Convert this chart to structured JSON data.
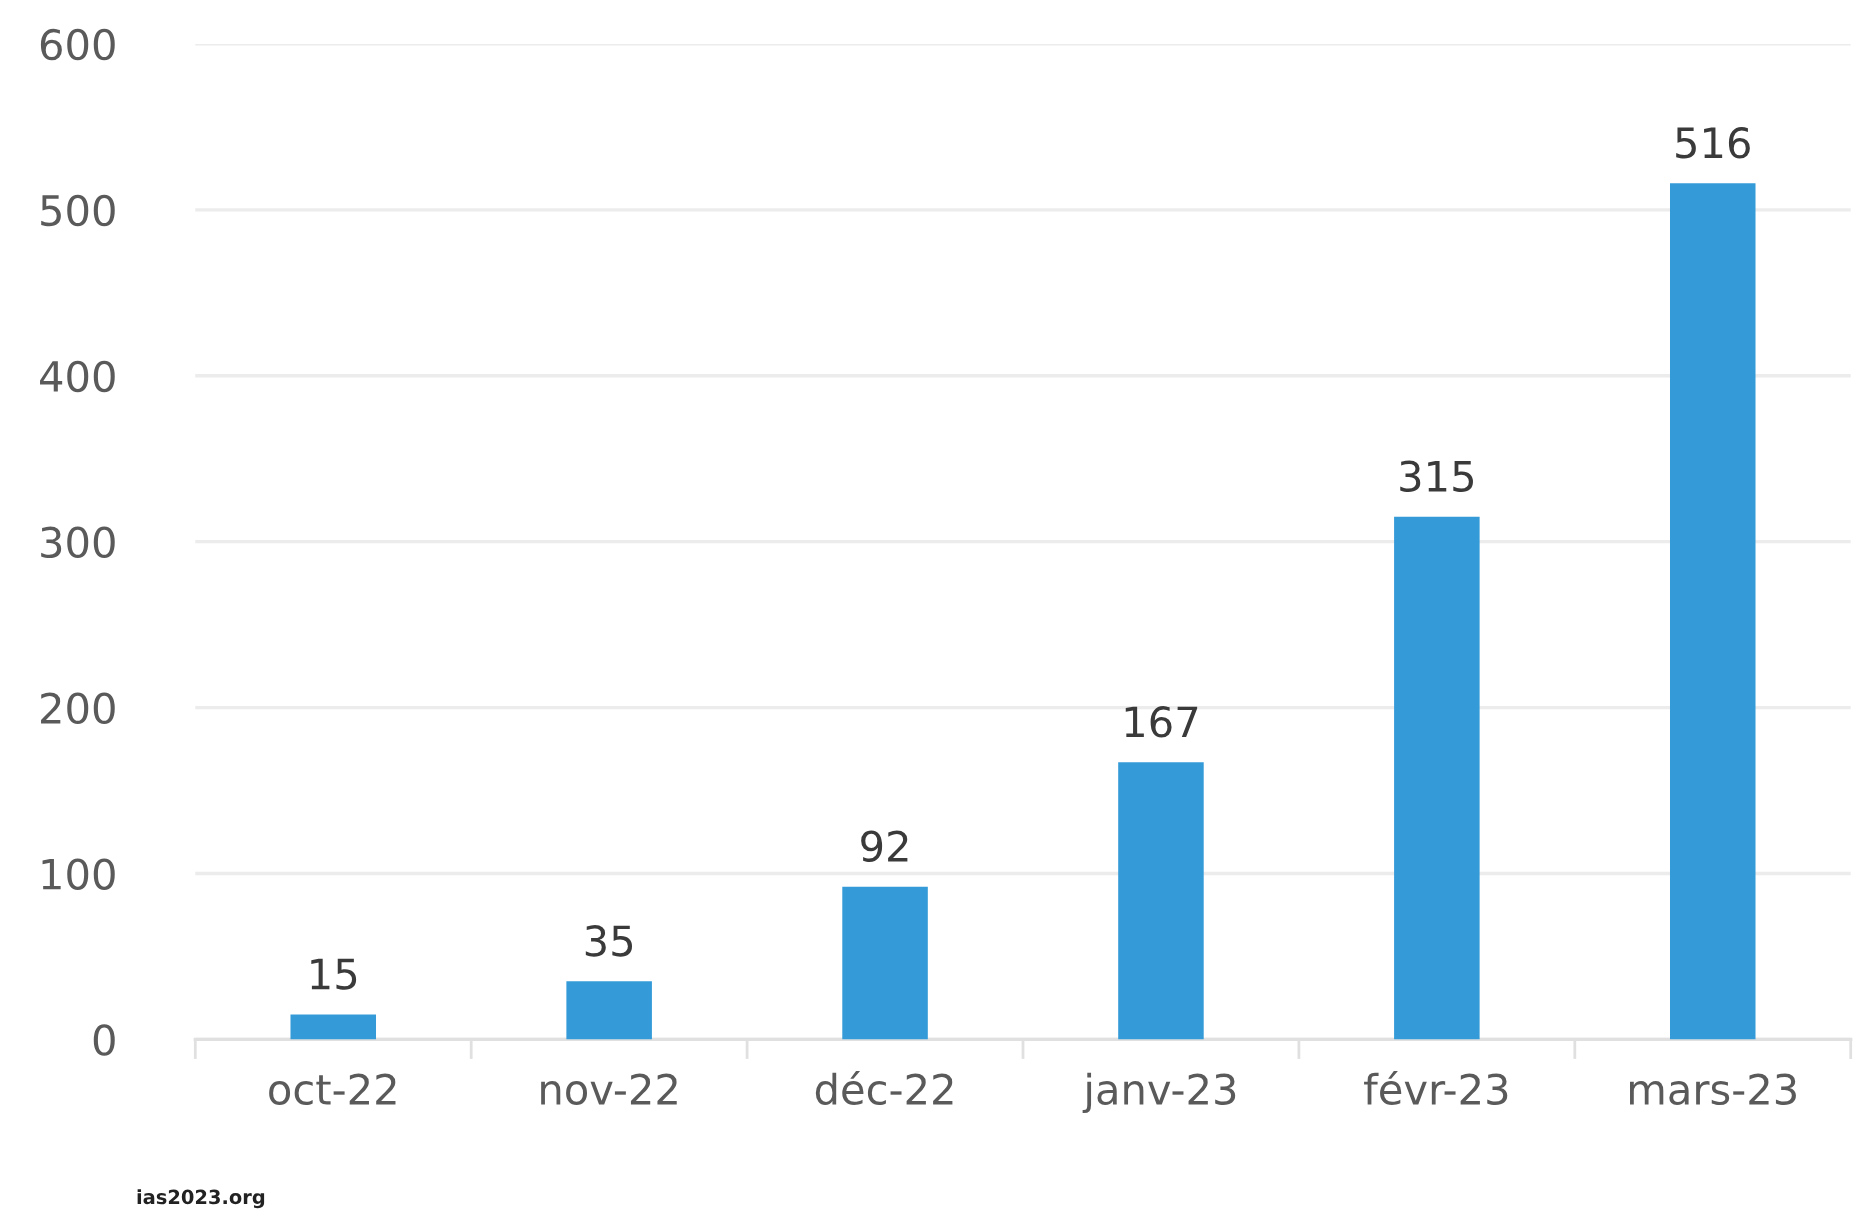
{
  "chart_data": {
    "type": "bar",
    "categories": [
      "oct-22",
      "nov-22",
      "déc-22",
      "janv-23",
      "févr-23",
      "mars-23"
    ],
    "values": [
      15,
      35,
      92,
      167,
      315,
      516
    ],
    "color": "#349bd8",
    "ylim": [
      0,
      600
    ],
    "yticks": [
      0,
      100,
      200,
      300,
      400,
      500,
      600
    ],
    "grid": "y",
    "data_labels": true,
    "annotations": [
      "ias2023.org"
    ]
  }
}
